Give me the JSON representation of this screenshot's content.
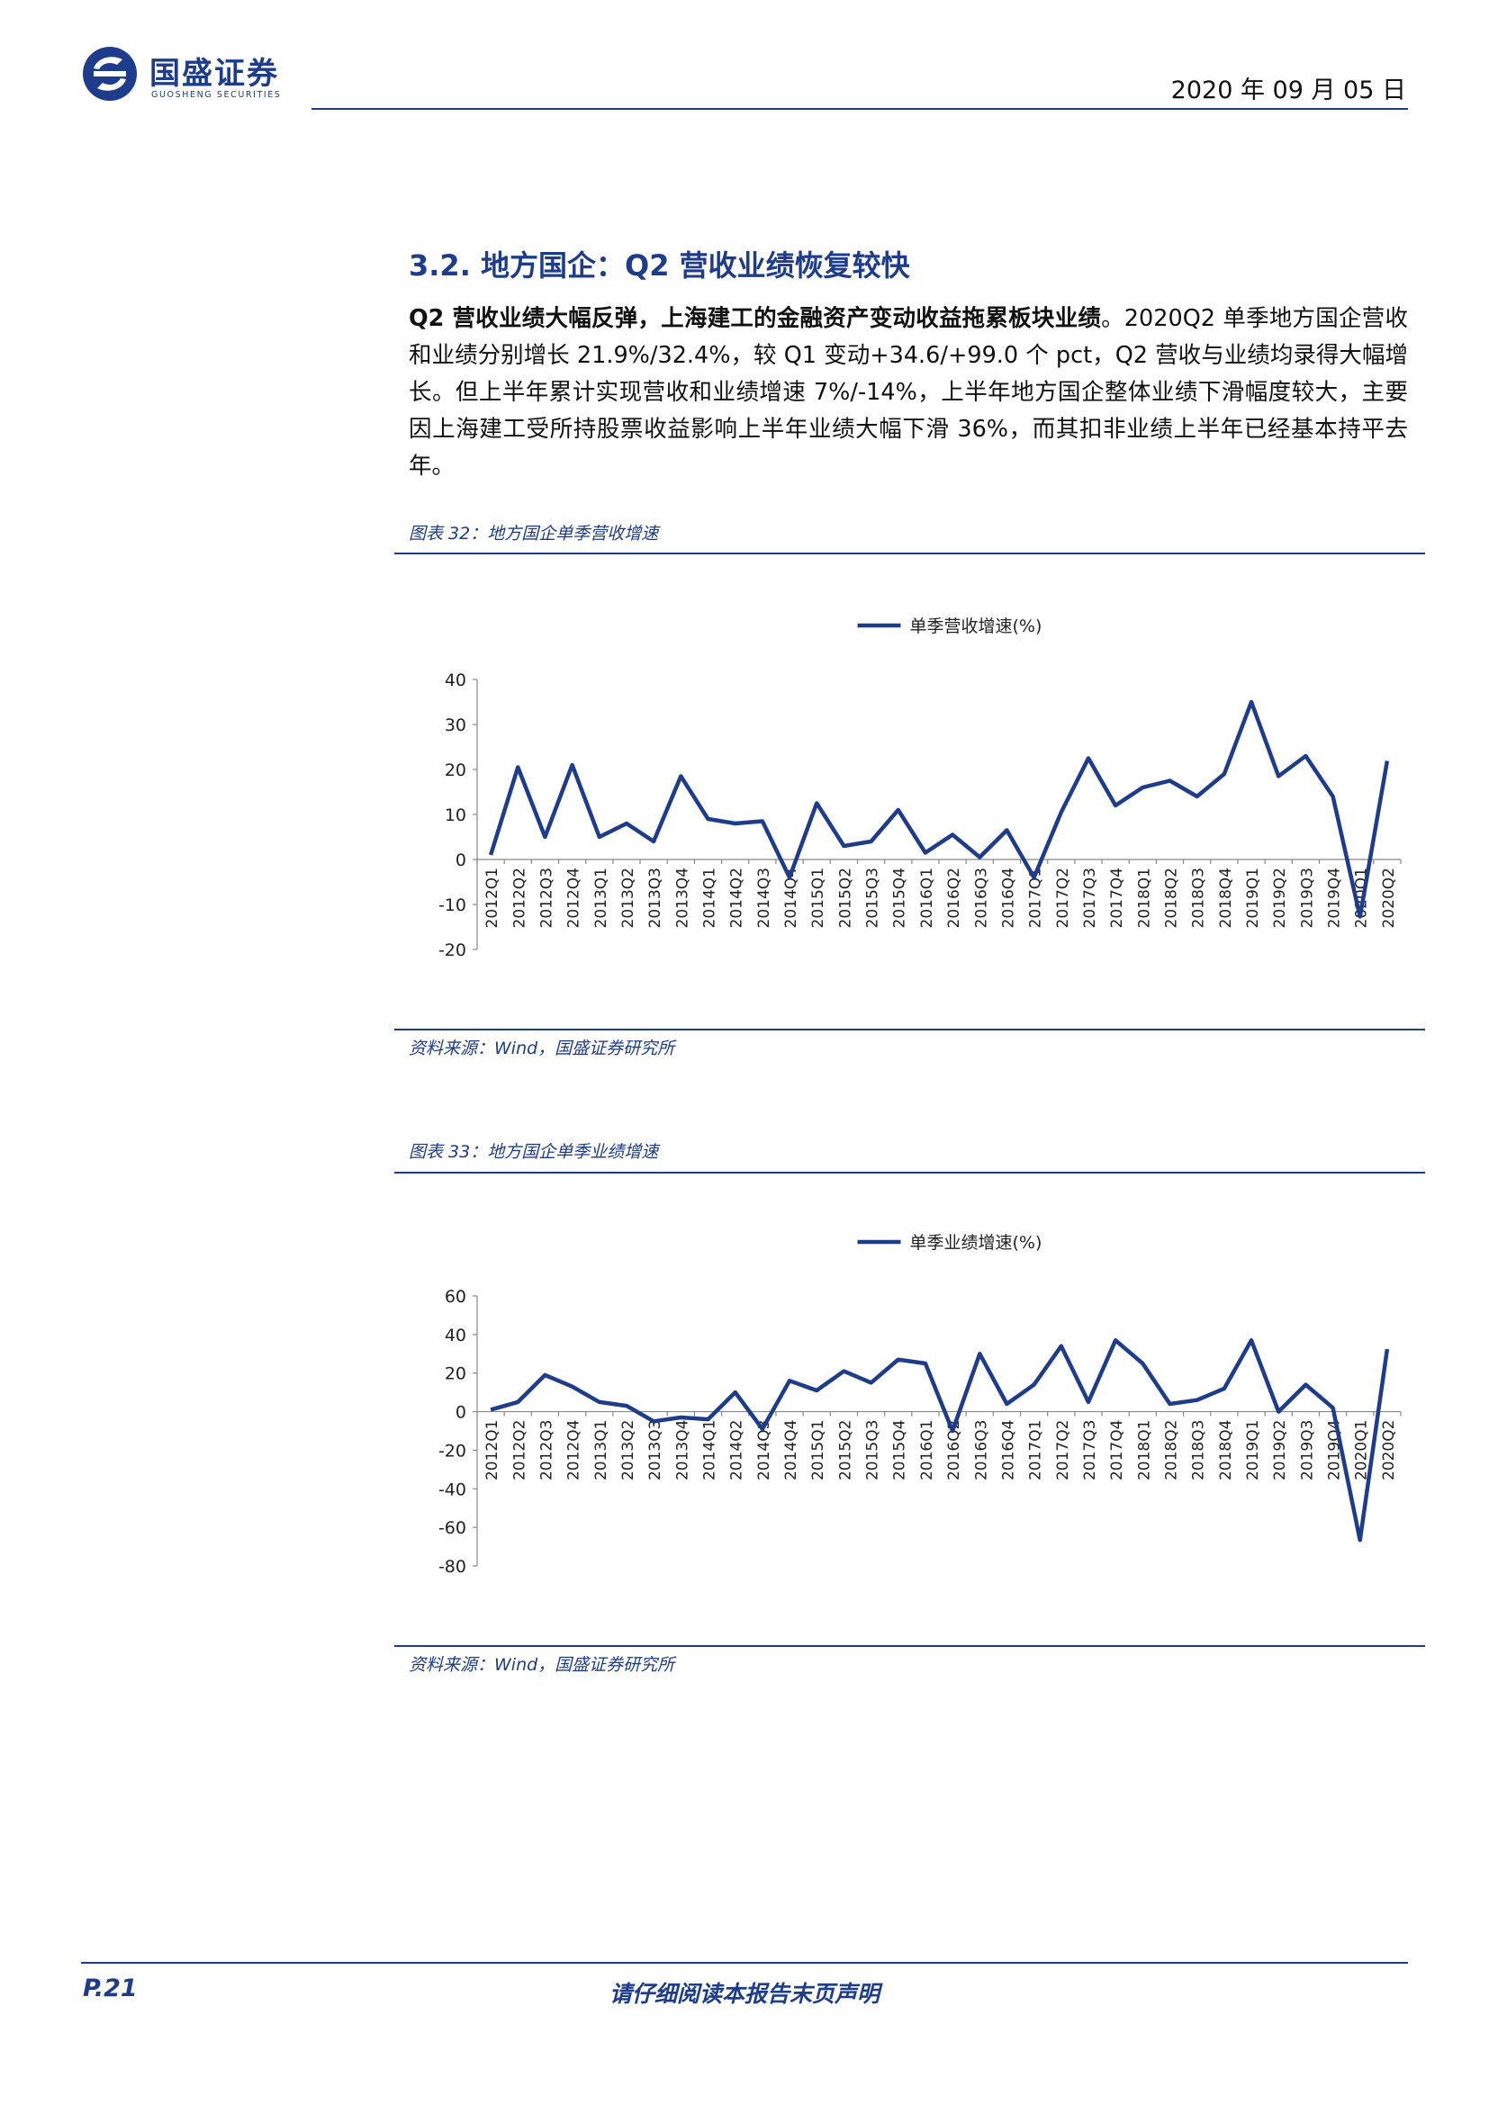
{
  "header": {
    "brand_name": "国盛证券",
    "brand_sub": "GUOSHENG SECURITIES",
    "date": "2020 年 09 月 05 日"
  },
  "section": {
    "title": "3.2. 地方国企：Q2 营收业绩恢复较快",
    "lead": "Q2 营收业绩大幅反弹，上海建工的金融资产变动收益拖累板块业绩",
    "body": "。2020Q2 单季地方国企营收和业绩分别增长 21.9%/32.4%，较 Q1 变动+34.6/+99.0 个 pct，Q2 营收与业绩均录得大幅增长。但上半年累计实现营收和业绩增速 7%/-14%，上半年地方国企整体业绩下滑幅度较大，主要因上海建工受所持股票收益影响上半年业绩大幅下滑 36%，而其扣非业绩上半年已经基本持平去年。"
  },
  "figures": [
    {
      "caption": "图表 32：地方国企单季营收增速",
      "source": "资料来源：Wind，国盛证券研究所"
    },
    {
      "caption": "图表 33：地方国企单季业绩增速",
      "source": "资料来源：Wind，国盛证券研究所"
    }
  ],
  "chart_data": [
    {
      "type": "line",
      "legend_position": "top-center",
      "color": "#1d3c8c",
      "categories": [
        "2012Q1",
        "2012Q2",
        "2012Q3",
        "2012Q4",
        "2013Q1",
        "2013Q2",
        "2013Q3",
        "2013Q4",
        "2014Q1",
        "2014Q2",
        "2014Q3",
        "2014Q4",
        "2015Q1",
        "2015Q2",
        "2015Q3",
        "2015Q4",
        "2016Q1",
        "2016Q2",
        "2016Q3",
        "2016Q4",
        "2017Q1",
        "2017Q2",
        "2017Q3",
        "2017Q4",
        "2018Q1",
        "2018Q2",
        "2018Q3",
        "2018Q4",
        "2019Q1",
        "2019Q2",
        "2019Q3",
        "2019Q4",
        "2020Q1",
        "2020Q2"
      ],
      "series": [
        {
          "name": "单季营收增速(%)",
          "values": [
            1,
            20.5,
            5,
            21,
            5,
            8,
            4,
            18.5,
            9,
            8,
            8.5,
            -4,
            12.5,
            3,
            4,
            11,
            1.5,
            5.5,
            0.5,
            6.5,
            -4,
            10.5,
            22.5,
            12,
            16,
            17.5,
            14,
            19,
            35,
            18.5,
            23,
            14,
            -12.7,
            21.9
          ]
        }
      ],
      "ylim": [
        -20,
        40
      ],
      "yticks": [
        40,
        30,
        20,
        10,
        0,
        -10,
        -20
      ],
      "grid": false
    },
    {
      "type": "line",
      "legend_position": "top-center",
      "color": "#1d3c8c",
      "categories": [
        "2012Q1",
        "2012Q2",
        "2012Q3",
        "2012Q4",
        "2013Q1",
        "2013Q2",
        "2013Q3",
        "2013Q4",
        "2014Q1",
        "2014Q2",
        "2014Q3",
        "2014Q4",
        "2015Q1",
        "2015Q2",
        "2015Q3",
        "2015Q4",
        "2016Q1",
        "2016Q2",
        "2016Q3",
        "2016Q4",
        "2017Q1",
        "2017Q2",
        "2017Q3",
        "2017Q4",
        "2018Q1",
        "2018Q2",
        "2018Q3",
        "2018Q4",
        "2019Q1",
        "2019Q2",
        "2019Q3",
        "2019Q4",
        "2020Q1",
        "2020Q2"
      ],
      "series": [
        {
          "name": "单季业绩增速(%)",
          "values": [
            1,
            5,
            19,
            13,
            5,
            3,
            -5,
            -3,
            -4,
            10,
            -9,
            16,
            11,
            21,
            15,
            27,
            25,
            -10,
            30,
            4,
            14,
            34,
            5,
            37,
            25,
            4,
            6,
            12,
            37,
            0,
            14,
            2,
            -66.6,
            32.4
          ]
        }
      ],
      "ylim": [
        -80,
        60
      ],
      "yticks": [
        60,
        40,
        20,
        0,
        -20,
        -40,
        -60,
        -80
      ],
      "grid": false
    }
  ]
}
